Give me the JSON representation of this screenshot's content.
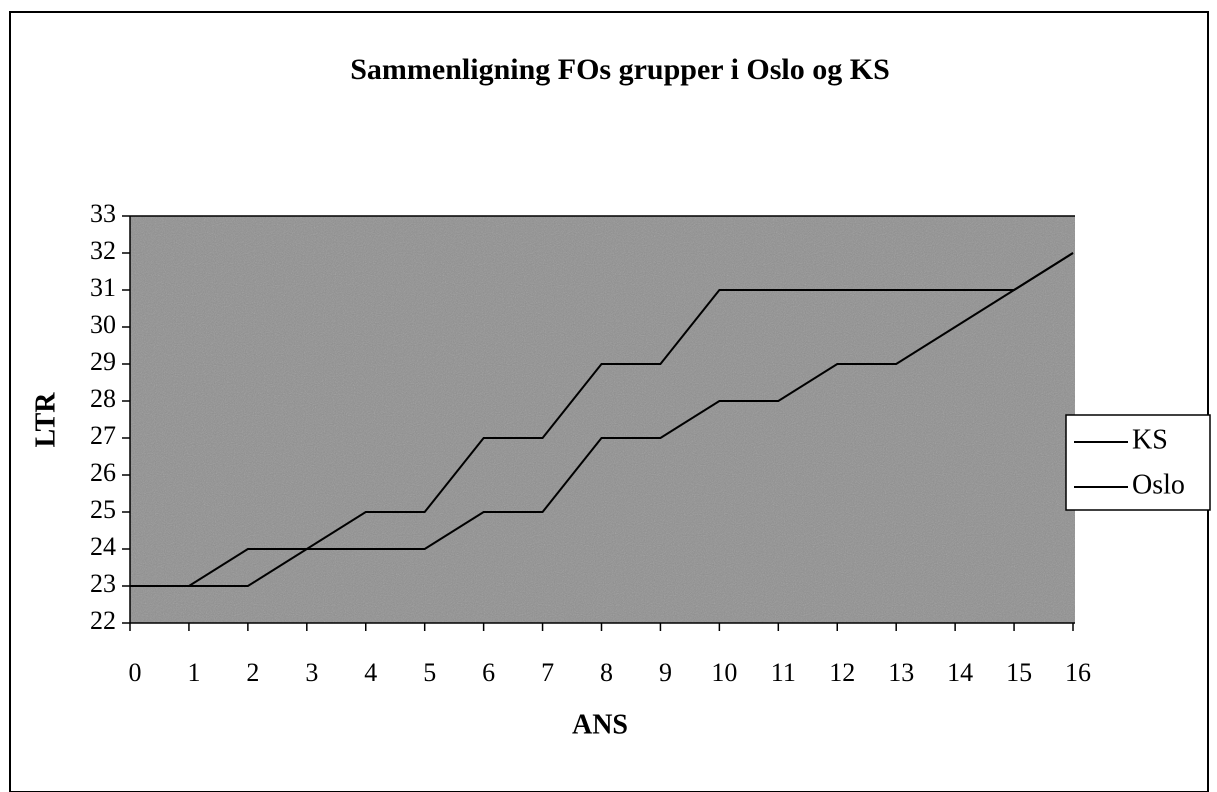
{
  "chart_data": {
    "type": "line",
    "title": "Sammenligning FOs grupper i Oslo og KS",
    "x_label": "ANS",
    "y_label": "LTR",
    "x": [
      0,
      1,
      2,
      3,
      4,
      5,
      6,
      7,
      8,
      9,
      10,
      11,
      12,
      13,
      14,
      15,
      16
    ],
    "series": [
      {
        "name": "KS",
        "color": "#000000",
        "values": [
          23,
          23,
          24,
          24,
          25,
          25,
          27,
          27,
          29,
          29,
          31,
          31,
          31,
          31,
          31,
          31,
          32
        ]
      },
      {
        "name": "Oslo",
        "color": "#000000",
        "values": [
          23,
          23,
          23,
          24,
          24,
          24,
          25,
          25,
          27,
          27,
          28,
          28,
          29,
          29,
          30,
          31,
          32
        ]
      }
    ],
    "xlim": [
      0,
      16
    ],
    "xticks": [
      0,
      1,
      2,
      3,
      4,
      5,
      6,
      7,
      8,
      9,
      10,
      11,
      12,
      13,
      14,
      15,
      16
    ],
    "ylim": [
      22,
      33
    ],
    "yticks": [
      22,
      23,
      24,
      25,
      26,
      27,
      28,
      29,
      30,
      31,
      32,
      33
    ],
    "grid": false,
    "legend": "right"
  }
}
